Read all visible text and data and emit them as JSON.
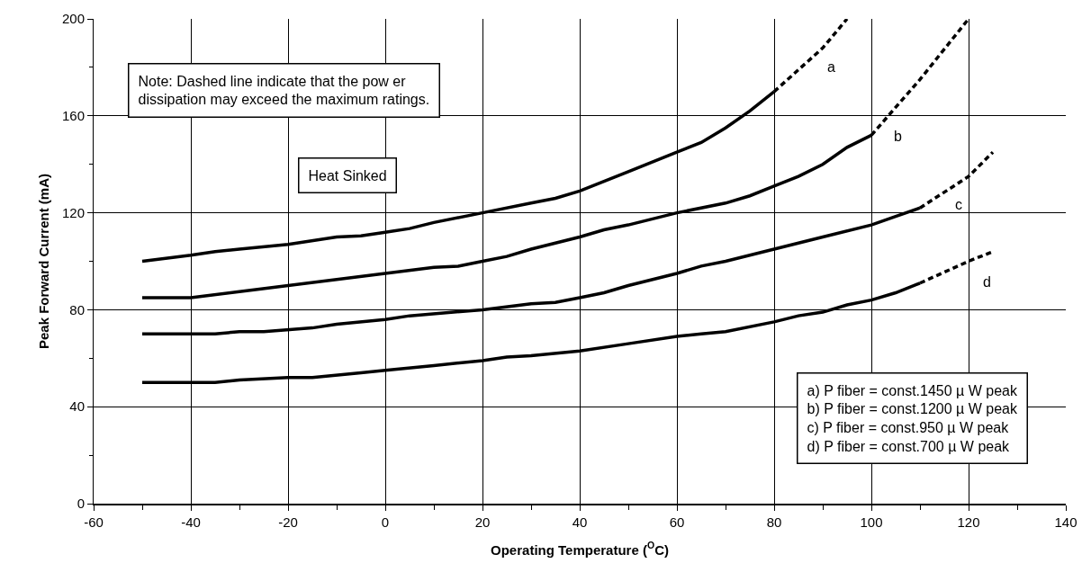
{
  "chart_data": {
    "type": "line",
    "xlabel": "Operating Temperature ($^{O}$C)",
    "ylabel": "Peak Forward Current (mA)",
    "xlim": [
      -60,
      140
    ],
    "ylim": [
      0,
      200
    ],
    "xticks": [
      -60,
      {
        "value": -50,
        "label": null
      },
      -40,
      {
        "value": -30,
        "label": null
      },
      -20,
      {
        "value": -10,
        "label": null
      },
      0,
      {
        "value": 10,
        "label": null
      },
      20,
      {
        "value": 30,
        "label": null
      },
      40,
      {
        "value": 50,
        "label": null
      },
      60,
      {
        "value": 70,
        "label": null
      },
      80,
      {
        "value": 90,
        "label": null
      },
      100,
      {
        "value": 110,
        "label": null
      },
      120,
      {
        "value": 130,
        "label": null
      },
      140
    ],
    "yticks": [
      0,
      {
        "value": 20,
        "label": null
      },
      40,
      {
        "value": 60,
        "label": null
      },
      80,
      {
        "value": 100,
        "label": null
      },
      120,
      {
        "value": 140,
        "label": null
      },
      160,
      {
        "value": 180,
        "label": null
      },
      200
    ],
    "grid": true,
    "marker": "none",
    "series": [
      {
        "color": "#000000",
        "line_style": "solid",
        "x": [
          -50,
          -40,
          -35,
          -30,
          -20,
          -10,
          -5,
          0,
          5,
          10,
          20,
          30,
          35,
          40,
          50,
          60,
          65,
          70,
          75,
          80
        ],
        "values": [
          100,
          102.5,
          104,
          105,
          107,
          110,
          110.5,
          112,
          113.5,
          116,
          120,
          124,
          126,
          129,
          137,
          145,
          149,
          155,
          162,
          170
        ]
      },
      {
        "color": "#000000",
        "line_style": "dashed",
        "x": [
          80,
          90,
          95
        ],
        "values": [
          170,
          188,
          200
        ]
      },
      {
        "color": "#000000",
        "line_style": "solid",
        "x": [
          -50,
          -40,
          -30,
          -20,
          -10,
          0,
          10,
          15,
          20,
          25,
          30,
          40,
          45,
          50,
          60,
          70,
          75,
          80,
          85,
          90,
          95,
          100
        ],
        "values": [
          85,
          85,
          87.5,
          90,
          92.5,
          95,
          97.5,
          98,
          100,
          102,
          105,
          110,
          113,
          115,
          120,
          124,
          127,
          131,
          135,
          140,
          147,
          152
        ]
      },
      {
        "color": "#000000",
        "line_style": "dashed",
        "x": [
          100,
          110,
          120
        ],
        "values": [
          152,
          175,
          200
        ]
      },
      {
        "color": "#000000",
        "line_style": "solid",
        "x": [
          -50,
          -35,
          -30,
          -25,
          -15,
          -10,
          0,
          5,
          20,
          30,
          35,
          40,
          45,
          50,
          60,
          65,
          70,
          80,
          85,
          90,
          100,
          105,
          110
        ],
        "values": [
          70,
          70,
          71,
          71,
          72.5,
          74,
          76,
          77.5,
          80,
          82.5,
          83,
          85,
          87,
          90,
          95,
          98,
          100,
          105,
          107.5,
          110,
          115,
          118.5,
          122
        ]
      },
      {
        "color": "#000000",
        "line_style": "dashed",
        "x": [
          110,
          120,
          125
        ],
        "values": [
          122,
          135,
          145
        ]
      },
      {
        "color": "#000000",
        "line_style": "solid",
        "x": [
          -50,
          -35,
          -30,
          -20,
          -15,
          -5,
          0,
          10,
          20,
          25,
          30,
          40,
          50,
          60,
          65,
          70,
          80,
          85,
          90,
          95,
          100,
          105,
          110
        ],
        "values": [
          50,
          50,
          51,
          52,
          52,
          54,
          55,
          57,
          59,
          60.5,
          61,
          63,
          66,
          69,
          70,
          71,
          75,
          77.5,
          79,
          82,
          84,
          87,
          91
        ]
      },
      {
        "color": "#000000",
        "line_style": "dashed",
        "x": [
          110,
          120,
          125
        ],
        "values": [
          91,
          100,
          104
        ]
      }
    ],
    "annotations": [
      "Note: Dashed line indicate that the pow er\ndissipation may exceed the maximum ratings.",
      "Heat Sinked",
      "a) P fiber = const.1450 µ W peak\nb) P fiber = const.1200 µ W peak\nc) P fiber = const.950 µ W peak\nd) P fiber = const.700 µ W peak",
      "a",
      "b",
      "c",
      "d"
    ]
  }
}
